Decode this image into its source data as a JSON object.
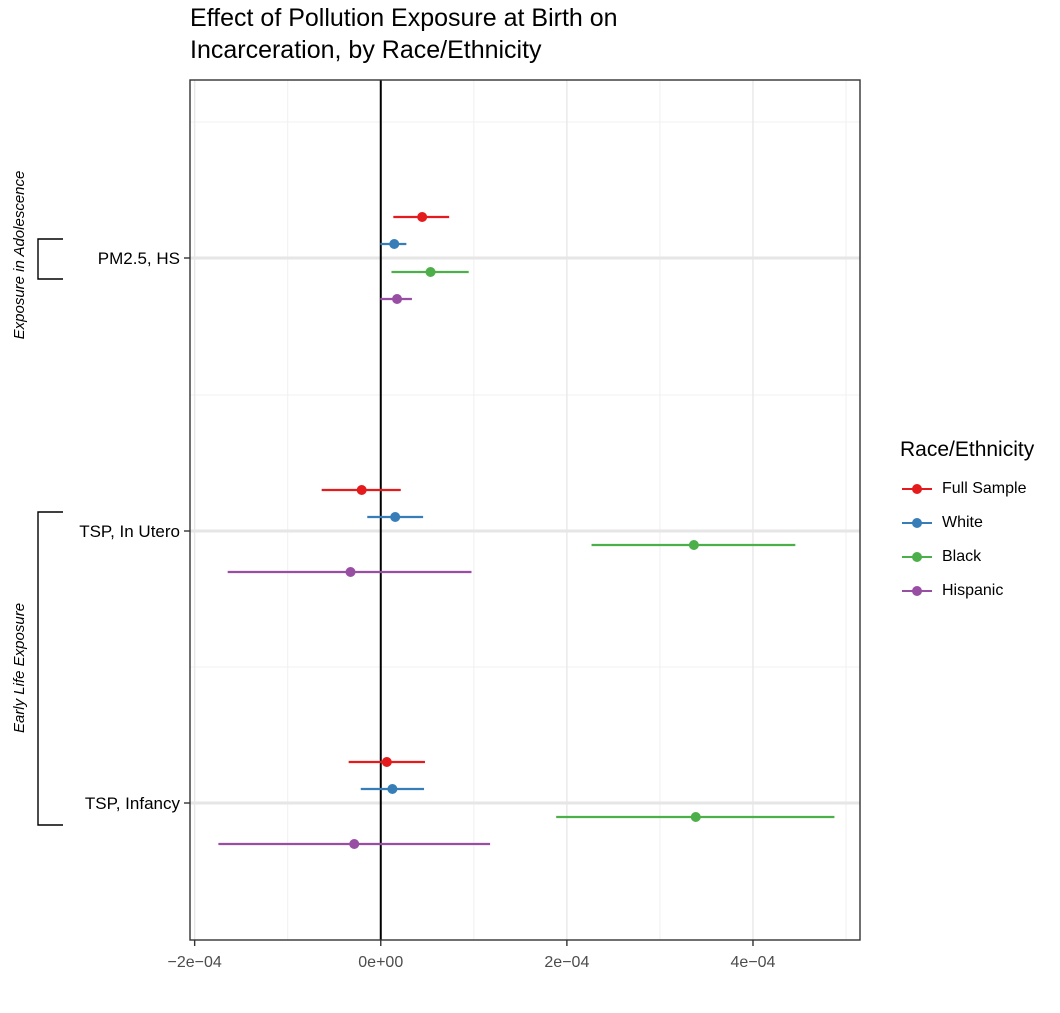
{
  "chart_data": {
    "type": "scatter",
    "title_lines": [
      "Effect of Pollution Exposure at Birth on",
      "Incarceration, by Race/Ethnicity"
    ],
    "xlabel": "",
    "ylabel": "",
    "xlim": [
      -0.000205,
      0.000515
    ],
    "x_ticks": [
      -0.0002,
      0,
      0.0002,
      0.0004
    ],
    "x_tick_labels": [
      "−2e−04",
      "0e+00",
      "2e−04",
      "4e−04"
    ],
    "reference_line_x": 0,
    "categories": [
      "PM2.5, HS",
      "TSP, In Utero",
      "TSP, Infancy"
    ],
    "groups": [
      {
        "label": "Exposure in Adolescence",
        "categories": [
          "PM2.5, HS"
        ]
      },
      {
        "label": "Early Life Exposure",
        "categories": [
          "TSP, In Utero",
          "TSP, Infancy"
        ]
      }
    ],
    "legend": {
      "title": "Race/Ethnicity",
      "position": "right"
    },
    "grid": true,
    "series": [
      {
        "name": "Full Sample",
        "color": "#e41a1c",
        "estimates": [
          4.45e-05,
          -2.05e-05,
          6.5e-06
        ],
        "ci_low": [
          1.35e-05,
          -6.35e-05,
          -3.45e-05
        ],
        "ci_high": [
          7.35e-05,
          2.15e-05,
          4.75e-05
        ]
      },
      {
        "name": "White",
        "color": "#377eb8",
        "estimates": [
          1.45e-05,
          1.55e-05,
          1.25e-05
        ],
        "ci_low": [
          -5e-07,
          -1.45e-05,
          -2.15e-05
        ],
        "ci_high": [
          2.75e-05,
          4.55e-05,
          4.65e-05
        ]
      },
      {
        "name": "Black",
        "color": "#4daf4a",
        "estimates": [
          5.35e-05,
          0.0003365,
          0.0003385
        ],
        "ci_low": [
          1.15e-05,
          0.0002265,
          0.0001885
        ],
        "ci_high": [
          9.45e-05,
          0.0004455,
          0.0004875
        ]
      },
      {
        "name": "Hispanic",
        "color": "#984ea3",
        "estimates": [
          1.75e-05,
          -3.25e-05,
          -2.85e-05
        ],
        "ci_low": [
          -5e-07,
          -0.0001645,
          -0.0001745
        ],
        "ci_high": [
          3.35e-05,
          9.75e-05,
          0.0001175
        ]
      }
    ]
  }
}
